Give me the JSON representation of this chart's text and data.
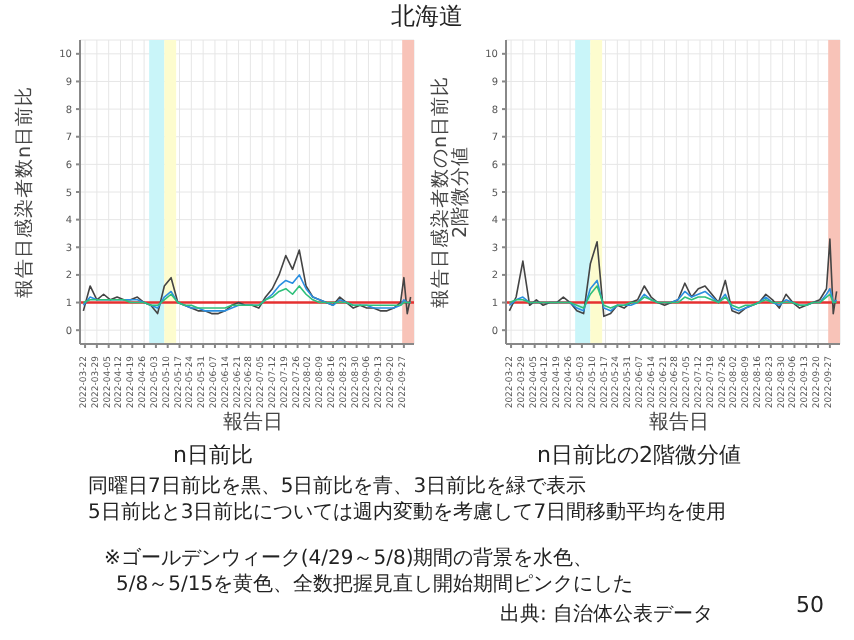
{
  "chart_data": [
    {
      "type": "line",
      "title": "n日前比",
      "xlabel": "報告日",
      "ylabel": "報告日感染者数n日前比",
      "annotations": [
        "北海道",
        "同曜日7日前比を黒、5日前比を青、3日前比を緑で表示",
        "5日前比と3日前比については週内変動を考慮して7日間移動平均を使用",
        "※ゴールデンウィーク(4/29～5/8)期間の背景を水色、",
        "5/8～5/15を黄色、全数把握見直し開始期間ピンクにした",
        "出典: 自治体公表データ",
        "50"
      ],
      "x": [
        "2022-03-21",
        "2022-03-25",
        "2022-03-29",
        "2022-04-02",
        "2022-04-06",
        "2022-04-10",
        "2022-04-14",
        "2022-04-18",
        "2022-04-22",
        "2022-04-26",
        "2022-04-30",
        "2022-05-04",
        "2022-05-08",
        "2022-05-12",
        "2022-05-16",
        "2022-05-20",
        "2022-05-24",
        "2022-05-28",
        "2022-06-01",
        "2022-06-05",
        "2022-06-09",
        "2022-06-13",
        "2022-06-17",
        "2022-06-21",
        "2022-06-25",
        "2022-06-29",
        "2022-07-03",
        "2022-07-07",
        "2022-07-11",
        "2022-07-15",
        "2022-07-19",
        "2022-07-23",
        "2022-07-27",
        "2022-07-31",
        "2022-08-04",
        "2022-08-08",
        "2022-08-12",
        "2022-08-16",
        "2022-08-20",
        "2022-08-24",
        "2022-08-28",
        "2022-09-01",
        "2022-09-05",
        "2022-09-09",
        "2022-09-13",
        "2022-09-17",
        "2022-09-21",
        "2022-09-25",
        "2022-09-27",
        "2022-09-29",
        "2022-10-01"
      ],
      "series": [
        {
          "color": "#444444",
          "values": [
            0.7,
            1.6,
            1.1,
            1.3,
            1.1,
            1.2,
            1.1,
            1.1,
            1.2,
            1.0,
            0.9,
            0.6,
            1.6,
            1.9,
            1.0,
            0.9,
            0.8,
            0.7,
            0.7,
            0.6,
            0.6,
            0.7,
            0.9,
            1.0,
            0.9,
            0.9,
            0.8,
            1.2,
            1.5,
            2.0,
            2.7,
            2.2,
            2.9,
            1.6,
            1.2,
            1.1,
            1.0,
            0.9,
            1.2,
            1.0,
            0.8,
            0.9,
            0.8,
            0.8,
            0.7,
            0.7,
            0.8,
            1.0,
            1.9,
            0.6,
            1.2
          ]
        },
        {
          "color": "#2b8ee0",
          "values": [
            0.9,
            1.2,
            1.1,
            1.1,
            1.1,
            1.1,
            1.1,
            1.1,
            1.1,
            1.0,
            0.9,
            0.8,
            1.2,
            1.4,
            1.0,
            0.9,
            0.8,
            0.8,
            0.7,
            0.7,
            0.7,
            0.7,
            0.8,
            0.9,
            0.9,
            0.9,
            0.9,
            1.1,
            1.3,
            1.6,
            1.8,
            1.7,
            2.0,
            1.5,
            1.2,
            1.1,
            1.0,
            0.9,
            1.1,
            1.0,
            0.9,
            0.9,
            0.9,
            0.8,
            0.8,
            0.8,
            0.8,
            0.9,
            1.1,
            1.0,
            1.0
          ]
        },
        {
          "color": "#2fbf7a",
          "values": [
            1.0,
            1.1,
            1.1,
            1.1,
            1.1,
            1.1,
            1.1,
            1.0,
            1.0,
            1.0,
            0.9,
            0.9,
            1.1,
            1.3,
            1.0,
            0.9,
            0.9,
            0.8,
            0.8,
            0.8,
            0.8,
            0.8,
            0.9,
            0.9,
            0.9,
            0.9,
            0.9,
            1.1,
            1.2,
            1.4,
            1.5,
            1.3,
            1.6,
            1.3,
            1.1,
            1.0,
            1.0,
            1.0,
            1.0,
            1.0,
            0.9,
            0.9,
            0.9,
            0.9,
            0.9,
            0.9,
            0.9,
            0.9,
            1.0,
            1.0,
            1.0
          ]
        }
      ],
      "xlim": [
        "2022-03-19",
        "2022-10-03"
      ],
      "xticks": [
        "2022-03-22",
        "2022-03-29",
        "2022-04-05",
        "2022-04-12",
        "2022-04-19",
        "2022-04-26",
        "2022-05-03",
        "2022-05-10",
        "2022-05-17",
        "2022-05-24",
        "2022-05-31",
        "2022-06-07",
        "2022-06-14",
        "2022-06-21",
        "2022-06-28",
        "2022-07-05",
        "2022-07-12",
        "2022-07-19",
        "2022-07-26",
        "2022-08-02",
        "2022-08-09",
        "2022-08-16",
        "2022-08-23",
        "2022-08-30",
        "2022-09-06",
        "2022-09-13",
        "2022-09-20",
        "2022-09-27"
      ],
      "ylim": [
        -0.5,
        10.5
      ],
      "yticks": [
        0,
        1,
        2,
        3,
        4,
        5,
        6,
        7,
        8,
        9,
        10
      ],
      "grid": true,
      "ref_lines": [
        {
          "axis": "y",
          "value": 1,
          "color": "#e53030"
        }
      ],
      "bands": [
        {
          "axis": "x",
          "from": "2022-04-29",
          "to": "2022-05-08",
          "color": "#c9f5f9"
        },
        {
          "axis": "x",
          "from": "2022-05-08",
          "to": "2022-05-15",
          "color": "#fdfcce"
        },
        {
          "axis": "x",
          "from": "2022-09-26",
          "to": "2022-10-03",
          "color": "#f8c3b8"
        }
      ]
    },
    {
      "type": "line",
      "title": "n日前比の2階微分値",
      "xlabel": "報告日",
      "ylabel": "報告日感染者数のn日前比\n2階微分値",
      "x": [
        "2022-03-21",
        "2022-03-25",
        "2022-03-29",
        "2022-04-02",
        "2022-04-06",
        "2022-04-10",
        "2022-04-14",
        "2022-04-18",
        "2022-04-22",
        "2022-04-26",
        "2022-04-30",
        "2022-05-04",
        "2022-05-08",
        "2022-05-12",
        "2022-05-16",
        "2022-05-20",
        "2022-05-24",
        "2022-05-28",
        "2022-06-01",
        "2022-06-05",
        "2022-06-09",
        "2022-06-13",
        "2022-06-17",
        "2022-06-21",
        "2022-06-25",
        "2022-06-29",
        "2022-07-03",
        "2022-07-07",
        "2022-07-11",
        "2022-07-15",
        "2022-07-19",
        "2022-07-23",
        "2022-07-27",
        "2022-07-31",
        "2022-08-04",
        "2022-08-08",
        "2022-08-12",
        "2022-08-16",
        "2022-08-20",
        "2022-08-24",
        "2022-08-28",
        "2022-09-01",
        "2022-09-05",
        "2022-09-09",
        "2022-09-13",
        "2022-09-17",
        "2022-09-21",
        "2022-09-25",
        "2022-09-27",
        "2022-09-29",
        "2022-10-01"
      ],
      "series": [
        {
          "color": "#444444",
          "values": [
            0.7,
            1.2,
            2.5,
            0.9,
            1.1,
            0.9,
            1.0,
            1.0,
            1.2,
            1.0,
            0.7,
            0.6,
            2.4,
            3.2,
            0.5,
            0.6,
            0.9,
            0.8,
            1.0,
            1.1,
            1.6,
            1.2,
            1.0,
            0.9,
            1.0,
            1.1,
            1.7,
            1.2,
            1.5,
            1.6,
            1.3,
            1.0,
            1.8,
            0.7,
            0.6,
            0.8,
            0.9,
            1.0,
            1.3,
            1.1,
            0.8,
            1.3,
            1.0,
            0.8,
            0.9,
            1.0,
            1.1,
            1.5,
            3.3,
            0.6,
            1.4
          ]
        },
        {
          "color": "#2b8ee0",
          "values": [
            0.9,
            1.1,
            1.2,
            1.0,
            1.0,
            1.0,
            1.0,
            1.0,
            1.0,
            1.0,
            0.8,
            0.7,
            1.5,
            1.8,
            0.8,
            0.7,
            0.9,
            0.9,
            0.9,
            1.0,
            1.3,
            1.1,
            1.0,
            1.0,
            1.0,
            1.1,
            1.4,
            1.2,
            1.3,
            1.4,
            1.2,
            1.0,
            1.3,
            0.8,
            0.7,
            0.8,
            0.9,
            1.0,
            1.2,
            1.0,
            0.9,
            1.1,
            1.0,
            0.9,
            0.9,
            1.0,
            1.0,
            1.3,
            1.5,
            1.0,
            1.1
          ]
        },
        {
          "color": "#2fbf7a",
          "values": [
            1.0,
            1.1,
            1.1,
            1.0,
            1.0,
            1.0,
            1.0,
            1.0,
            1.0,
            1.0,
            0.9,
            0.8,
            1.3,
            1.6,
            0.9,
            0.8,
            0.9,
            0.9,
            1.0,
            1.0,
            1.2,
            1.1,
            1.0,
            1.0,
            1.0,
            1.0,
            1.2,
            1.1,
            1.2,
            1.2,
            1.1,
            1.0,
            1.2,
            0.9,
            0.8,
            0.9,
            0.9,
            1.0,
            1.1,
            1.0,
            1.0,
            1.0,
            1.0,
            0.9,
            0.9,
            1.0,
            1.0,
            1.2,
            1.3,
            1.0,
            1.0
          ]
        }
      ],
      "xlim": [
        "2022-03-19",
        "2022-10-03"
      ],
      "xticks": [
        "2022-03-22",
        "2022-03-29",
        "2022-04-05",
        "2022-04-12",
        "2022-04-19",
        "2022-04-26",
        "2022-05-03",
        "2022-05-10",
        "2022-05-17",
        "2022-05-24",
        "2022-05-31",
        "2022-06-07",
        "2022-06-14",
        "2022-06-21",
        "2022-06-28",
        "2022-07-05",
        "2022-07-12",
        "2022-07-19",
        "2022-07-26",
        "2022-08-02",
        "2022-08-09",
        "2022-08-16",
        "2022-08-23",
        "2022-08-30",
        "2022-09-06",
        "2022-09-13",
        "2022-09-20",
        "2022-09-27"
      ],
      "ylim": [
        -0.5,
        10.5
      ],
      "yticks": [
        0,
        1,
        2,
        3,
        4,
        5,
        6,
        7,
        8,
        9,
        10
      ],
      "grid": true,
      "ref_lines": [
        {
          "axis": "y",
          "value": 1,
          "color": "#e53030"
        }
      ],
      "bands": [
        {
          "axis": "x",
          "from": "2022-04-29",
          "to": "2022-05-08",
          "color": "#c9f5f9"
        },
        {
          "axis": "x",
          "from": "2022-05-08",
          "to": "2022-05-15",
          "color": "#fdfcce"
        },
        {
          "axis": "x",
          "from": "2022-09-26",
          "to": "2022-10-03",
          "color": "#f8c3b8"
        }
      ]
    }
  ]
}
